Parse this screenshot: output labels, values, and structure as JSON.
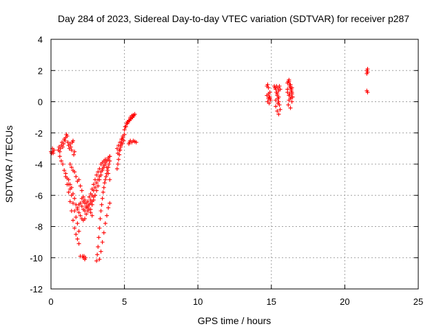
{
  "chart_data": {
    "type": "scatter",
    "title": "Day 284 of 2023, Sidereal Day-to-day VTEC variation (SDTVAR) for receiver p287",
    "xlabel": "GPS time / hours",
    "ylabel": "SDTVAR / TECUs",
    "xlim": [
      0,
      25
    ],
    "ylim": [
      -12,
      4
    ],
    "xticks": [
      0,
      5,
      10,
      15,
      20,
      25
    ],
    "yticks": [
      -12,
      -10,
      -8,
      -6,
      -4,
      -2,
      0,
      2,
      4
    ],
    "xtick_labels": [
      "0",
      "5",
      "10",
      "15",
      "20",
      "25"
    ],
    "ytick_labels": [
      "-12",
      "-10",
      "-8",
      "-6",
      "-4",
      "-2",
      "0",
      "2",
      "4"
    ],
    "grid": true,
    "legend": "none",
    "marker": "plus",
    "color": "#ff0000",
    "series": [
      {
        "x": [
          0.0,
          0.1,
          0.15,
          0.2,
          0.05,
          0.12,
          0.5,
          0.55,
          0.6,
          0.65,
          0.7,
          0.75,
          0.8,
          0.85,
          0.9,
          0.95,
          1.0,
          1.05,
          1.1,
          1.15,
          1.2,
          1.25,
          1.3,
          1.35,
          1.4,
          1.45,
          1.5,
          1.55,
          1.6,
          0.6,
          0.7,
          0.8,
          0.9,
          1.0,
          1.1,
          1.2,
          1.3,
          1.4,
          1.5,
          1.6,
          1.7,
          1.8,
          1.9,
          2.0,
          1.0,
          1.1,
          1.2,
          1.3,
          1.4,
          1.5,
          1.6,
          1.7,
          1.8,
          1.9,
          1.2,
          1.3,
          1.4,
          1.5,
          1.6,
          1.7,
          1.8,
          1.9,
          2.0,
          2.1,
          2.2,
          2.3,
          2.4,
          2.5,
          2.6,
          2.7,
          2.8,
          1.3,
          1.4,
          1.5,
          1.6,
          1.7,
          1.8,
          1.9,
          2.0,
          2.1,
          2.2,
          2.3,
          2.4,
          2.5,
          2.6,
          2.7,
          2.8,
          2.9,
          3.0,
          2.15,
          2.2,
          2.25,
          2.3,
          2.35,
          1.8,
          1.9,
          2.0,
          2.1,
          2.2,
          2.3,
          2.4,
          2.5,
          2.6,
          2.7,
          2.8,
          2.9,
          3.0,
          3.1,
          3.2,
          3.3,
          3.4,
          3.5,
          3.6,
          3.7,
          3.8,
          3.9,
          4.0,
          2.1,
          2.2,
          2.3,
          2.4,
          2.5,
          2.6,
          2.7,
          2.8,
          2.9,
          3.0,
          3.1,
          3.2,
          3.3,
          3.4,
          3.5,
          3.6,
          3.7,
          3.8,
          3.9,
          4.0,
          3.1,
          3.15,
          3.2,
          3.25,
          3.3,
          3.35,
          3.4,
          3.45,
          3.5,
          3.55,
          3.6,
          3.65,
          3.7,
          3.75,
          3.8,
          3.85,
          3.9,
          3.95,
          4.0,
          3.3,
          3.4,
          3.5,
          3.6,
          3.7,
          3.8,
          3.9,
          4.0,
          2.7,
          2.8,
          2.9,
          3.0,
          3.1,
          3.2,
          3.3,
          3.4,
          3.5,
          3.6,
          3.7,
          3.8,
          3.9,
          4.0,
          4.5,
          4.55,
          4.6,
          4.65,
          4.7,
          4.75,
          4.8,
          4.85,
          4.9,
          4.5,
          4.6,
          4.7,
          4.8,
          4.9,
          5.0,
          4.55,
          4.65,
          4.75,
          4.85,
          4.95,
          5.0,
          5.1,
          5.2,
          5.3,
          5.4,
          5.5,
          5.6,
          5.7,
          5.2,
          5.3,
          5.4,
          5.5,
          5.6,
          5.7,
          5.05,
          5.15,
          5.25,
          5.35,
          5.45,
          5.55,
          5.65,
          5.4,
          5.5,
          5.6,
          5.7,
          5.8,
          5.3,
          5.35,
          14.7,
          14.75,
          14.8,
          14.85,
          14.9,
          14.95,
          14.7,
          14.8,
          14.9,
          14.75,
          14.85,
          14.8,
          14.9,
          15.2,
          15.25,
          15.3,
          15.35,
          15.4,
          15.45,
          15.5,
          15.55,
          15.6,
          15.3,
          15.4,
          15.5,
          15.35,
          15.45,
          15.55,
          15.4,
          15.5,
          15.45,
          15.5,
          15.3,
          15.6,
          16.1,
          16.15,
          16.2,
          16.25,
          16.3,
          16.35,
          16.4,
          16.45,
          16.1,
          16.2,
          16.3,
          16.4,
          16.15,
          16.25,
          16.35,
          16.2,
          16.3,
          16.4,
          16.25,
          16.35,
          16.2,
          16.3,
          16.4,
          16.1,
          21.5,
          21.55,
          21.5,
          21.55,
          21.5,
          21.55
        ],
        "y": [
          -3.2,
          -3.0,
          -3.3,
          -3.1,
          -3.3,
          -3.2,
          -3.1,
          -2.9,
          -3.2,
          -3.0,
          -2.8,
          -2.6,
          -2.9,
          -2.7,
          -2.4,
          -2.5,
          -2.3,
          -2.1,
          -2.2,
          -2.6,
          -2.8,
          -3.0,
          -2.7,
          -2.9,
          -3.1,
          -2.6,
          -2.5,
          -3.4,
          -3.2,
          -3.5,
          -3.8,
          -4.0,
          -4.4,
          -4.8,
          -5.3,
          -5.8,
          -6.4,
          -7.0,
          -7.6,
          -8.1,
          -8.5,
          -8.8,
          -9.1,
          -9.9,
          -4.6,
          -4.9,
          -5.3,
          -5.6,
          -6.0,
          -6.5,
          -7.0,
          -7.4,
          -7.8,
          -8.3,
          -5.0,
          -5.3,
          -5.5,
          -5.9,
          -6.2,
          -6.6,
          -6.9,
          -7.1,
          -7.3,
          -7.5,
          -7.6,
          -7.5,
          -7.2,
          -7.0,
          -6.9,
          -7.1,
          -7.3,
          -4.0,
          -4.2,
          -4.4,
          -4.5,
          -4.8,
          -5.1,
          -5.0,
          -5.4,
          -5.7,
          -6.1,
          -6.3,
          -6.5,
          -6.8,
          -6.6,
          -6.5,
          -6.4,
          -6.1,
          -6.0,
          -9.9,
          -10.0,
          -9.9,
          -10.1,
          -10.0,
          -6.8,
          -6.6,
          -6.5,
          -6.7,
          -6.9,
          -7.0,
          -6.8,
          -6.7,
          -6.6,
          -6.3,
          -6.0,
          -5.7,
          -5.5,
          -5.2,
          -5.0,
          -4.8,
          -4.5,
          -4.3,
          -4.1,
          -3.9,
          -3.8,
          -3.7,
          -3.5,
          -6.2,
          -6.4,
          -6.5,
          -6.7,
          -6.4,
          -6.1,
          -5.9,
          -5.6,
          -5.3,
          -5.0,
          -4.7,
          -4.5,
          -4.3,
          -4.0,
          -3.9,
          -3.8,
          -3.7,
          -4.2,
          -4.6,
          -5.0,
          -10.2,
          -9.8,
          -9.3,
          -8.7,
          -8.1,
          -7.5,
          -7.0,
          -6.6,
          -6.2,
          -5.8,
          -5.5,
          -5.2,
          -5.0,
          -4.8,
          -4.6,
          -4.4,
          -4.2,
          -4.0,
          -3.8,
          -10.1,
          -9.6,
          -9.0,
          -8.4,
          -7.8,
          -7.3,
          -6.8,
          -6.5,
          -6.9,
          -6.6,
          -6.3,
          -6.0,
          -5.7,
          -5.4,
          -5.0,
          -4.7,
          -4.4,
          -4.2,
          -4.0,
          -3.8,
          -3.6,
          -3.5,
          -4.3,
          -4.0,
          -3.7,
          -3.4,
          -3.1,
          -2.8,
          -2.6,
          -2.4,
          -2.2,
          -3.0,
          -2.8,
          -2.6,
          -2.4,
          -2.3,
          -2.1,
          -3.3,
          -3.1,
          -2.9,
          -2.7,
          -2.5,
          -1.8,
          -1.6,
          -1.4,
          -1.2,
          -1.1,
          -1.0,
          -0.9,
          -0.8,
          -1.3,
          -1.2,
          -1.0,
          -0.9,
          -0.85,
          -0.8,
          -1.6,
          -1.4,
          -1.3,
          -1.2,
          -1.1,
          -1.0,
          -0.9,
          -2.5,
          -2.6,
          -2.5,
          -2.55,
          -2.6,
          -2.7,
          -2.6,
          1.0,
          1.1,
          0.9,
          0.3,
          0.2,
          0.1,
          0.4,
          0.5,
          0.6,
          0.0,
          -0.1,
          0.2,
          0.3,
          1.0,
          0.9,
          0.8,
          0.6,
          0.4,
          0.2,
          0.0,
          -0.2,
          -0.5,
          -0.3,
          -0.6,
          -0.8,
          1.0,
          0.9,
          1.0,
          0.5,
          0.7,
          -0.1,
          0.3,
          0.1,
          0.8,
          1.2,
          1.3,
          1.4,
          1.1,
          0.9,
          0.7,
          0.5,
          0.3,
          0.6,
          0.4,
          0.2,
          0.0,
          -0.2,
          1.0,
          0.8,
          1.3,
          1.1,
          0.9,
          0.5,
          0.3,
          0.1,
          -0.4,
          0.6,
          0.8,
          2.0,
          1.9,
          1.8,
          2.1,
          0.7,
          0.6
        ]
      }
    ]
  }
}
